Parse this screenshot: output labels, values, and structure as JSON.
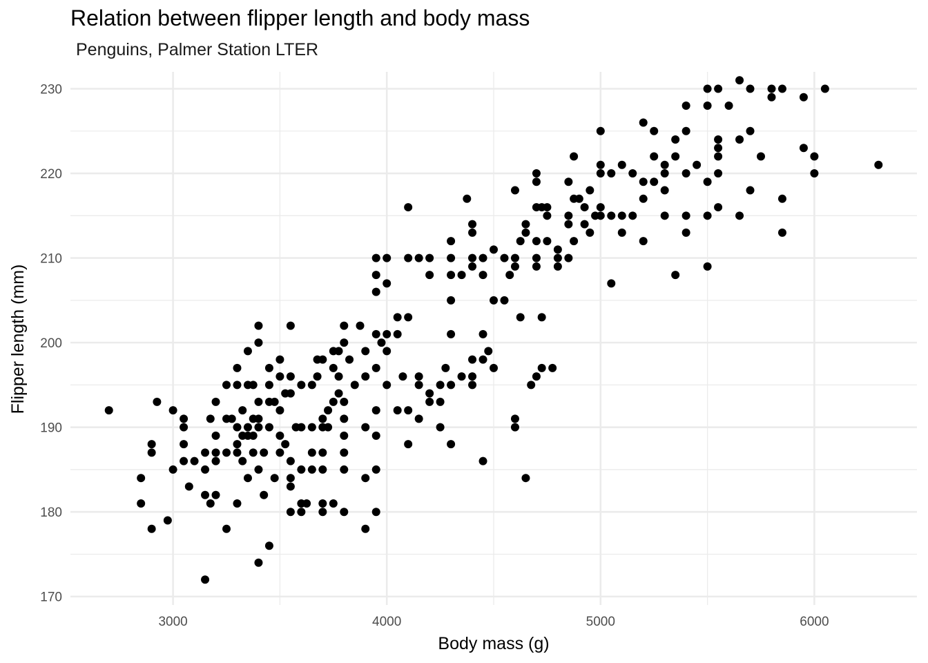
{
  "chart_data": {
    "type": "scatter",
    "title": "Relation between flipper length and body mass",
    "subtitle": "Penguins, Palmer Station LTER",
    "xlabel": "Body mass (g)",
    "ylabel": "Flipper length (mm)",
    "xlim": [
      2520,
      6480
    ],
    "ylim": [
      169,
      232
    ],
    "x_ticks": [
      3000,
      4000,
      5000,
      6000
    ],
    "y_ticks": [
      170,
      180,
      190,
      200,
      210,
      220,
      230
    ],
    "x_tick_labels": [
      "3000",
      "4000",
      "5000",
      "6000"
    ],
    "y_tick_labels": [
      "170",
      "180",
      "190",
      "200",
      "210",
      "220",
      "230"
    ],
    "grid": true,
    "point_color": "#000000",
    "gridline_color": "#ebebeb",
    "points": [
      [
        2700,
        192
      ],
      [
        2850,
        184
      ],
      [
        2850,
        181
      ],
      [
        2900,
        188
      ],
      [
        2900,
        187
      ],
      [
        2900,
        178
      ],
      [
        2925,
        193
      ],
      [
        2975,
        179
      ],
      [
        3000,
        192
      ],
      [
        3000,
        185
      ],
      [
        3050,
        186
      ],
      [
        3050,
        191
      ],
      [
        3050,
        190
      ],
      [
        3050,
        188
      ],
      [
        3075,
        183
      ],
      [
        3100,
        186
      ],
      [
        3150,
        182
      ],
      [
        3150,
        185
      ],
      [
        3150,
        187
      ],
      [
        3150,
        172
      ],
      [
        3175,
        191
      ],
      [
        3175,
        181
      ],
      [
        3200,
        186
      ],
      [
        3200,
        182
      ],
      [
        3200,
        187
      ],
      [
        3200,
        189
      ],
      [
        3200,
        193
      ],
      [
        3250,
        187
      ],
      [
        3250,
        178
      ],
      [
        3250,
        195
      ],
      [
        3250,
        191
      ],
      [
        3275,
        191
      ],
      [
        3300,
        181
      ],
      [
        3300,
        187
      ],
      [
        3300,
        188
      ],
      [
        3300,
        190
      ],
      [
        3300,
        195
      ],
      [
        3300,
        197
      ],
      [
        3325,
        186
      ],
      [
        3325,
        189
      ],
      [
        3325,
        192
      ],
      [
        3350,
        184
      ],
      [
        3350,
        195
      ],
      [
        3350,
        199
      ],
      [
        3350,
        190
      ],
      [
        3350,
        189
      ],
      [
        3375,
        195
      ],
      [
        3375,
        191
      ],
      [
        3375,
        189
      ],
      [
        3375,
        187
      ],
      [
        3400,
        193
      ],
      [
        3400,
        174
      ],
      [
        3400,
        185
      ],
      [
        3400,
        190
      ],
      [
        3400,
        191
      ],
      [
        3400,
        200
      ],
      [
        3400,
        202
      ],
      [
        3425,
        182
      ],
      [
        3425,
        187
      ],
      [
        3450,
        190
      ],
      [
        3450,
        193
      ],
      [
        3450,
        195
      ],
      [
        3450,
        197
      ],
      [
        3450,
        176
      ],
      [
        3475,
        184
      ],
      [
        3475,
        193
      ],
      [
        3500,
        187
      ],
      [
        3500,
        198
      ],
      [
        3500,
        189
      ],
      [
        3500,
        196
      ],
      [
        3500,
        192
      ],
      [
        3525,
        188
      ],
      [
        3525,
        194
      ],
      [
        3550,
        180
      ],
      [
        3550,
        183
      ],
      [
        3550,
        184
      ],
      [
        3550,
        186
      ],
      [
        3550,
        202
      ],
      [
        3550,
        194
      ],
      [
        3550,
        196
      ],
      [
        3575,
        190
      ],
      [
        3600,
        181
      ],
      [
        3600,
        190
      ],
      [
        3600,
        195
      ],
      [
        3600,
        180
      ],
      [
        3600,
        185
      ],
      [
        3625,
        181
      ],
      [
        3650,
        190
      ],
      [
        3650,
        195
      ],
      [
        3650,
        187
      ],
      [
        3650,
        185
      ],
      [
        3675,
        196
      ],
      [
        3675,
        198
      ],
      [
        3700,
        181
      ],
      [
        3700,
        180
      ],
      [
        3700,
        190
      ],
      [
        3700,
        185
      ],
      [
        3700,
        187
      ],
      [
        3700,
        191
      ],
      [
        3700,
        198
      ],
      [
        3725,
        192
      ],
      [
        3725,
        190
      ],
      [
        3750,
        197
      ],
      [
        3750,
        199
      ],
      [
        3750,
        193
      ],
      [
        3750,
        181
      ],
      [
        3775,
        194
      ],
      [
        3775,
        196
      ],
      [
        3775,
        199
      ],
      [
        3800,
        180
      ],
      [
        3800,
        185
      ],
      [
        3800,
        187
      ],
      [
        3800,
        189
      ],
      [
        3800,
        191
      ],
      [
        3800,
        193
      ],
      [
        3800,
        200
      ],
      [
        3800,
        202
      ],
      [
        3825,
        198
      ],
      [
        3850,
        195
      ],
      [
        3875,
        202
      ],
      [
        3900,
        178
      ],
      [
        3900,
        184
      ],
      [
        3900,
        190
      ],
      [
        3900,
        196
      ],
      [
        3900,
        199
      ],
      [
        3950,
        180
      ],
      [
        3950,
        185
      ],
      [
        3950,
        189
      ],
      [
        3950,
        192
      ],
      [
        3950,
        197
      ],
      [
        3950,
        201
      ],
      [
        3950,
        208
      ],
      [
        3950,
        206
      ],
      [
        3950,
        210
      ],
      [
        3975,
        200
      ],
      [
        4000,
        195
      ],
      [
        4000,
        199
      ],
      [
        4000,
        201
      ],
      [
        4000,
        207
      ],
      [
        4000,
        210
      ],
      [
        4050,
        192
      ],
      [
        4050,
        201
      ],
      [
        4050,
        203
      ],
      [
        4075,
        196
      ],
      [
        4100,
        188
      ],
      [
        4100,
        192
      ],
      [
        4100,
        203
      ],
      [
        4100,
        210
      ],
      [
        4100,
        216
      ],
      [
        4150,
        191
      ],
      [
        4150,
        195
      ],
      [
        4150,
        196
      ],
      [
        4150,
        210
      ],
      [
        4200,
        193
      ],
      [
        4200,
        194
      ],
      [
        4200,
        208
      ],
      [
        4200,
        210
      ],
      [
        4250,
        190
      ],
      [
        4250,
        193
      ],
      [
        4250,
        195
      ],
      [
        4275,
        197
      ],
      [
        4300,
        188
      ],
      [
        4300,
        195
      ],
      [
        4300,
        201
      ],
      [
        4300,
        205
      ],
      [
        4300,
        208
      ],
      [
        4300,
        210
      ],
      [
        4300,
        212
      ],
      [
        4350,
        196
      ],
      [
        4350,
        208
      ],
      [
        4375,
        217
      ],
      [
        4400,
        195
      ],
      [
        4400,
        196
      ],
      [
        4400,
        198
      ],
      [
        4400,
        209
      ],
      [
        4400,
        210
      ],
      [
        4400,
        213
      ],
      [
        4400,
        214
      ],
      [
        4450,
        186
      ],
      [
        4450,
        198
      ],
      [
        4450,
        201
      ],
      [
        4450,
        208
      ],
      [
        4450,
        210
      ],
      [
        4475,
        199
      ],
      [
        4500,
        197
      ],
      [
        4500,
        205
      ],
      [
        4500,
        211
      ],
      [
        4550,
        205
      ],
      [
        4550,
        210
      ],
      [
        4575,
        208
      ],
      [
        4600,
        190
      ],
      [
        4600,
        191
      ],
      [
        4600,
        209
      ],
      [
        4600,
        210
      ],
      [
        4600,
        218
      ],
      [
        4625,
        203
      ],
      [
        4625,
        212
      ],
      [
        4650,
        184
      ],
      [
        4650,
        213
      ],
      [
        4650,
        214
      ],
      [
        4675,
        195
      ],
      [
        4700,
        196
      ],
      [
        4700,
        209
      ],
      [
        4700,
        210
      ],
      [
        4700,
        212
      ],
      [
        4700,
        216
      ],
      [
        4700,
        219
      ],
      [
        4700,
        220
      ],
      [
        4725,
        197
      ],
      [
        4725,
        203
      ],
      [
        4725,
        216
      ],
      [
        4750,
        212
      ],
      [
        4750,
        215
      ],
      [
        4750,
        216
      ],
      [
        4775,
        197
      ],
      [
        4800,
        209
      ],
      [
        4800,
        210
      ],
      [
        4800,
        211
      ],
      [
        4850,
        210
      ],
      [
        4850,
        214
      ],
      [
        4850,
        215
      ],
      [
        4850,
        219
      ],
      [
        4875,
        212
      ],
      [
        4875,
        217
      ],
      [
        4875,
        222
      ],
      [
        4900,
        217
      ],
      [
        4925,
        214
      ],
      [
        4925,
        216
      ],
      [
        4950,
        213
      ],
      [
        4950,
        218
      ],
      [
        4975,
        215
      ],
      [
        5000,
        215
      ],
      [
        5000,
        216
      ],
      [
        5000,
        220
      ],
      [
        5000,
        221
      ],
      [
        5000,
        225
      ],
      [
        5050,
        207
      ],
      [
        5050,
        215
      ],
      [
        5050,
        220
      ],
      [
        5100,
        213
      ],
      [
        5100,
        215
      ],
      [
        5100,
        221
      ],
      [
        5150,
        215
      ],
      [
        5150,
        220
      ],
      [
        5200,
        212
      ],
      [
        5200,
        217
      ],
      [
        5200,
        219
      ],
      [
        5200,
        226
      ],
      [
        5250,
        219
      ],
      [
        5250,
        222
      ],
      [
        5250,
        225
      ],
      [
        5300,
        215
      ],
      [
        5300,
        218
      ],
      [
        5300,
        220
      ],
      [
        5300,
        221
      ],
      [
        5350,
        208
      ],
      [
        5350,
        222
      ],
      [
        5350,
        224
      ],
      [
        5400,
        213
      ],
      [
        5400,
        215
      ],
      [
        5400,
        220
      ],
      [
        5400,
        225
      ],
      [
        5400,
        228
      ],
      [
        5450,
        221
      ],
      [
        5500,
        209
      ],
      [
        5500,
        215
      ],
      [
        5500,
        219
      ],
      [
        5500,
        228
      ],
      [
        5500,
        230
      ],
      [
        5550,
        216
      ],
      [
        5550,
        220
      ],
      [
        5550,
        222
      ],
      [
        5550,
        223
      ],
      [
        5550,
        224
      ],
      [
        5550,
        230
      ],
      [
        5600,
        228
      ],
      [
        5650,
        215
      ],
      [
        5650,
        224
      ],
      [
        5650,
        231
      ],
      [
        5700,
        218
      ],
      [
        5700,
        225
      ],
      [
        5700,
        230
      ],
      [
        5750,
        222
      ],
      [
        5800,
        229
      ],
      [
        5800,
        230
      ],
      [
        5850,
        213
      ],
      [
        5850,
        217
      ],
      [
        5850,
        230
      ],
      [
        5950,
        223
      ],
      [
        5950,
        229
      ],
      [
        6000,
        220
      ],
      [
        6000,
        222
      ],
      [
        6050,
        230
      ],
      [
        6300,
        221
      ]
    ]
  }
}
